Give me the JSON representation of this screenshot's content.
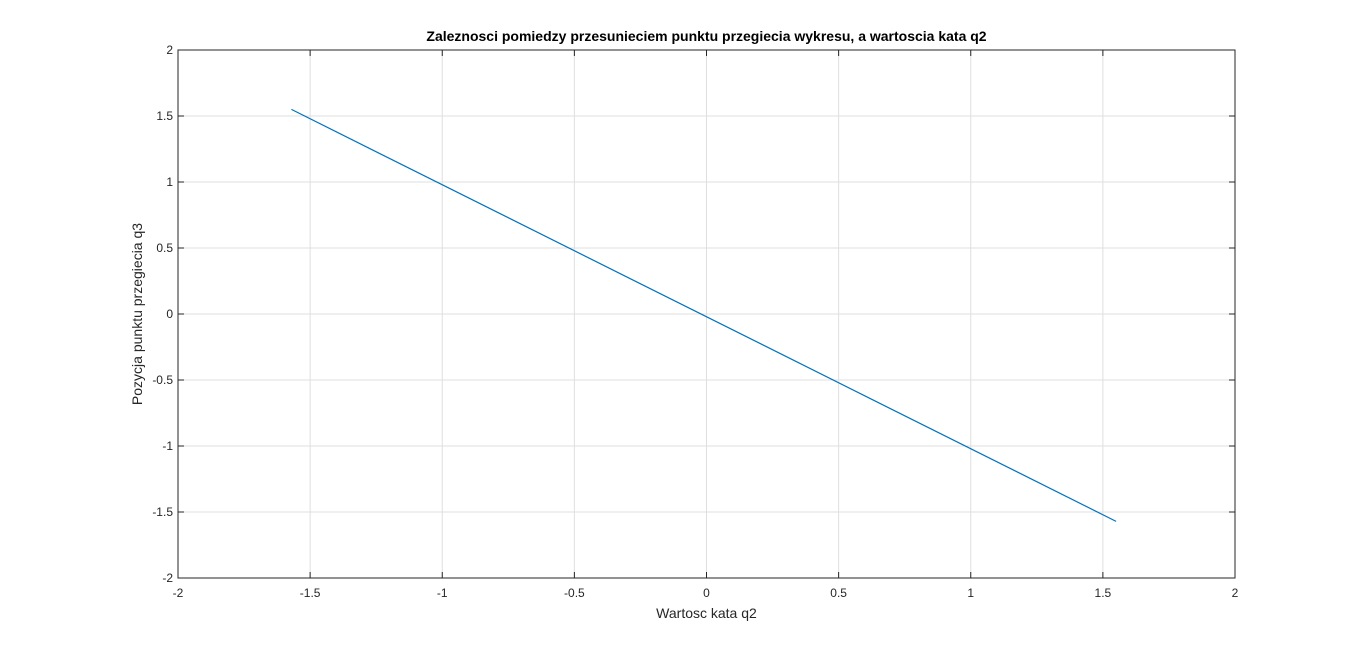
{
  "chart_data": {
    "type": "line",
    "title": "Zaleznosci pomiedzy przesunieciem punktu przegiecia wykresu, a wartoscia kata q2",
    "xlabel": "Wartosc kata q2",
    "ylabel": "Pozycja punktu przegiecia q3",
    "xlim": [
      -2,
      2
    ],
    "ylim": [
      -2,
      2
    ],
    "xticks": [
      -2,
      -1.5,
      -1,
      -0.5,
      0,
      0.5,
      1,
      1.5,
      2
    ],
    "yticks": [
      -2,
      -1.5,
      -1,
      -0.5,
      0,
      0.5,
      1,
      1.5,
      2
    ],
    "xtick_labels": [
      "-2",
      "-1.5",
      "-1",
      "-0.5",
      "0",
      "0.5",
      "1",
      "1.5",
      "2"
    ],
    "ytick_labels": [
      "-2",
      "-1.5",
      "-1",
      "-0.5",
      "0",
      "0.5",
      "1",
      "1.5",
      "2"
    ],
    "grid": true,
    "series": [
      {
        "color": "#0072bd",
        "x": [
          -1.5708,
          1.55
        ],
        "y": [
          1.55,
          -1.5708
        ]
      }
    ]
  }
}
